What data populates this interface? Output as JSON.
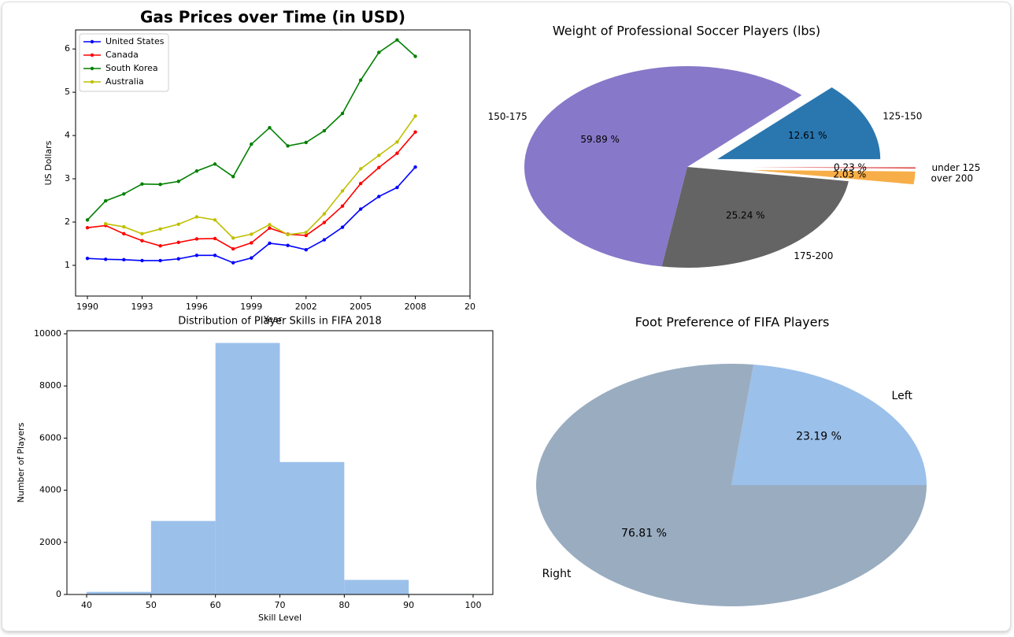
{
  "chart_data": [
    {
      "type": "line",
      "title": "Gas Prices over Time (in USD)",
      "xlabel": "Year",
      "ylabel": "US Dollars",
      "x": [
        1990,
        1991,
        1992,
        1993,
        1994,
        1995,
        1996,
        1997,
        1998,
        1999,
        2000,
        2001,
        2002,
        2003,
        2004,
        2005,
        2006,
        2007,
        2008
      ],
      "series": [
        {
          "name": "United States",
          "color": "#0000ff",
          "values": [
            1.16,
            1.14,
            1.13,
            1.11,
            1.11,
            1.15,
            1.23,
            1.23,
            1.06,
            1.17,
            1.51,
            1.46,
            1.36,
            1.59,
            1.88,
            2.3,
            2.59,
            2.8,
            3.27
          ]
        },
        {
          "name": "Canada",
          "color": "#ff0000",
          "values": [
            1.87,
            1.92,
            1.73,
            1.57,
            1.45,
            1.53,
            1.61,
            1.62,
            1.38,
            1.52,
            1.86,
            1.72,
            1.69,
            1.99,
            2.37,
            2.89,
            3.26,
            3.59,
            4.08
          ]
        },
        {
          "name": "South Korea",
          "color": "#008000",
          "values": [
            2.05,
            2.49,
            2.65,
            2.88,
            2.87,
            2.94,
            3.18,
            3.34,
            3.05,
            3.8,
            4.18,
            3.76,
            3.84,
            4.11,
            4.51,
            5.28,
            5.92,
            6.21,
            5.83
          ]
        },
        {
          "name": "Australia",
          "color": "#bfbf00",
          "values": [
            null,
            1.96,
            1.89,
            1.73,
            1.84,
            1.95,
            2.12,
            2.05,
            1.63,
            1.72,
            1.94,
            1.71,
            1.76,
            2.19,
            2.72,
            3.23,
            3.54,
            3.85,
            4.45
          ]
        }
      ],
      "xlim": [
        1989.35,
        2011
      ],
      "xticks": [
        1990,
        1993,
        1996,
        1999,
        2002,
        2005,
        2008,
        {
          "value": 2011,
          "label": "20"
        }
      ],
      "ylim": [
        0.29,
        6.44
      ],
      "yticks": [
        1,
        2,
        3,
        4,
        5,
        6
      ],
      "legend": "upper left"
    },
    {
      "type": "pie",
      "title": "Weight of Professional Soccer Players (lbs)",
      "categories": [
        "125-150",
        "150-175",
        "175-200",
        "over 200",
        "under 125"
      ],
      "values": [
        12.61,
        59.89,
        25.24,
        2.03,
        0.23
      ],
      "value_labels": [
        "12.61 %",
        "59.89 %",
        "25.24 %",
        "2.03 %",
        "0.23 %"
      ],
      "colors": [
        "#2a77b0",
        "#8878c9",
        "#646464",
        "#f7ae48",
        "#e05252"
      ],
      "explode": [
        0.2,
        0,
        0,
        0.4,
        0.4
      ]
    },
    {
      "type": "histogram",
      "title": "Distribution of Player Skills in FIFA 2018",
      "xlabel": "Skill Level",
      "ylabel": "Number of Players",
      "bins": [
        40,
        50,
        60,
        70,
        80,
        90,
        100
      ],
      "values": [
        100,
        2820,
        9650,
        5080,
        560,
        20
      ],
      "color": "#9bc0ea",
      "xlim": [
        36.94,
        103.06
      ],
      "xticks": [
        40,
        50,
        60,
        70,
        80,
        90,
        100
      ],
      "ylim": [
        0,
        10120
      ],
      "yticks": [
        0,
        2000,
        4000,
        6000,
        8000,
        10000
      ]
    },
    {
      "type": "pie",
      "title": "Foot Preference of FIFA Players",
      "categories": [
        "Left",
        "Right"
      ],
      "values": [
        23.19,
        76.81
      ],
      "value_labels": [
        "23.19 %",
        "76.81 %"
      ],
      "colors": [
        "#9bc0ea",
        "#9aacc0"
      ],
      "explode": [
        0,
        0
      ]
    }
  ]
}
